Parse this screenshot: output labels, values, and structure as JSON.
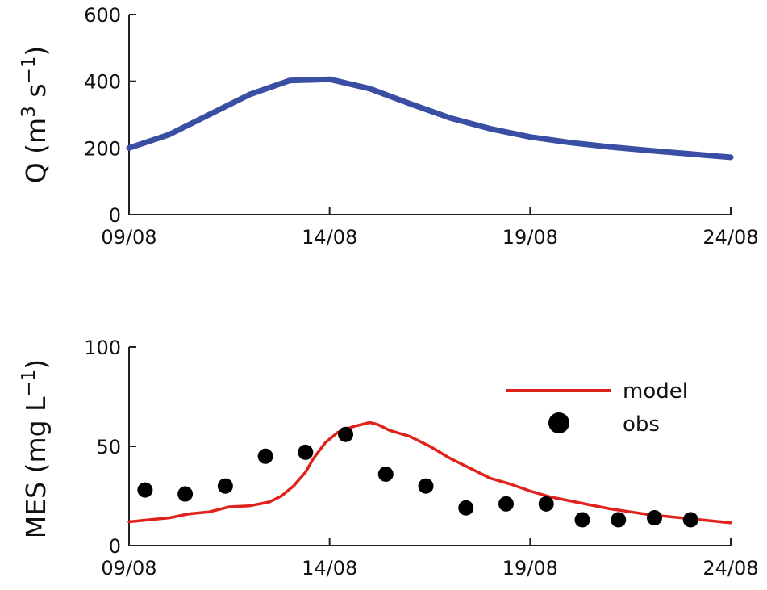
{
  "chart_data": [
    {
      "type": "line",
      "ylabel": "Q (m",
      "ylabel_exp1": "3",
      "ylabel_s": " s",
      "ylabel_exp2": "−1",
      "ylabel_close": ")",
      "x_ticks": [
        "09/08",
        "14/08",
        "19/08",
        "24/08"
      ],
      "x_tick_values": [
        0,
        5,
        10,
        15
      ],
      "xlim": [
        0,
        15
      ],
      "y_ticks": [
        "0",
        "200",
        "400",
        "600"
      ],
      "y_tick_values": [
        0,
        200,
        400,
        600
      ],
      "ylim": [
        0,
        600
      ],
      "grid": false,
      "colors": {
        "line": "#3a4fa3"
      },
      "series": [
        {
          "x": [
            0,
            1,
            2,
            3,
            4,
            5,
            6,
            7,
            8,
            9,
            10,
            11,
            12,
            13,
            14,
            15
          ],
          "values": [
            200,
            240,
            300,
            360,
            402,
            406,
            378,
            333,
            290,
            258,
            233,
            216,
            203,
            192,
            182,
            172
          ]
        }
      ]
    },
    {
      "type": "line+scatter",
      "ylabel": "MES (mg L",
      "ylabel_exp": "−1",
      "ylabel_close": ")",
      "x_ticks": [
        "09/08",
        "14/08",
        "19/08",
        "24/08"
      ],
      "x_tick_values": [
        0,
        5,
        10,
        15
      ],
      "xlim": [
        0,
        15
      ],
      "y_ticks": [
        "0",
        "50",
        "100"
      ],
      "y_tick_values": [
        0,
        50,
        100
      ],
      "ylim": [
        0,
        100
      ],
      "grid": false,
      "legend_position": "top-right",
      "colors": {
        "model": "#e0211c",
        "obs": "#000000"
      },
      "series": [
        {
          "name": "model",
          "style": "line",
          "x": [
            0,
            0.5,
            1,
            1.5,
            2,
            2.5,
            3,
            3.5,
            3.8,
            4.1,
            4.4,
            4.6,
            4.9,
            5.2,
            5.6,
            6,
            6.2,
            6.5,
            7,
            7.5,
            8,
            8.5,
            9,
            9.5,
            10,
            10.5,
            11,
            11.5,
            12,
            12.5,
            13,
            13.5,
            14,
            14.5,
            15
          ],
          "values": [
            12,
            13,
            14,
            16,
            17,
            19.5,
            20,
            22,
            25,
            30,
            37,
            44,
            52,
            57,
            60,
            62,
            61,
            58,
            55,
            50,
            44,
            39,
            34,
            31,
            27.5,
            24.5,
            22.5,
            20.5,
            18.5,
            17,
            15.5,
            14.5,
            13.5,
            12.5,
            11.5
          ]
        },
        {
          "name": "obs",
          "style": "scatter",
          "x": [
            0.4,
            1.4,
            2.4,
            3.4,
            4.4,
            5.4,
            6.4,
            7.4,
            8.4,
            9.4,
            10.4,
            11.3,
            12.2,
            13.1,
            14.0
          ],
          "values": [
            28,
            26,
            30,
            45,
            47,
            56,
            36,
            30,
            19,
            21,
            21,
            13,
            13,
            14,
            13
          ]
        }
      ]
    }
  ]
}
